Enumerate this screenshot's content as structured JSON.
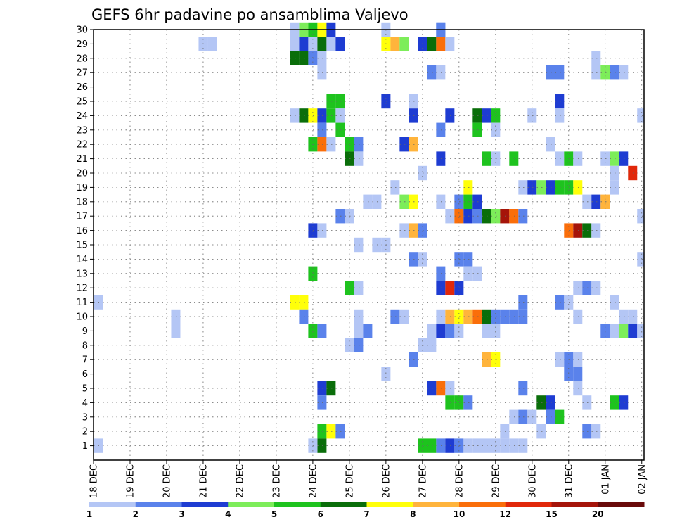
{
  "chart_data": {
    "type": "heatmap",
    "title": "GEFS 6hr padavine po ansamblima Valjevo",
    "xlabel": "",
    "ylabel": "",
    "x_tick_labels": [
      "18 DEC",
      "19 DEC",
      "20 DEC",
      "21 DEC",
      "22 DEC",
      "23 DEC",
      "24 DEC",
      "25 DEC",
      "26 DEC",
      "27 DEC",
      "28 DEC",
      "29 DEC",
      "30 DEC",
      "31 DEC",
      "01 JAN",
      "02 JAN"
    ],
    "x_range_steps": [
      0,
      60
    ],
    "steps_per_day": 4,
    "y_range": [
      0,
      30
    ],
    "y_ticks": [
      1,
      2,
      3,
      4,
      5,
      6,
      7,
      8,
      9,
      10,
      11,
      12,
      13,
      14,
      15,
      16,
      17,
      18,
      19,
      20,
      21,
      22,
      23,
      24,
      25,
      26,
      27,
      28,
      29,
      30
    ],
    "grid": true,
    "legend_placement": "bottom",
    "colorbar": {
      "labels": [
        "1",
        "2",
        "3",
        "4",
        "5",
        "6",
        "7",
        "8",
        "10",
        "12",
        "15",
        "20"
      ],
      "colors": [
        "#b4c6f5",
        "#5a82eb",
        "#1e3cd2",
        "#7ded5a",
        "#1ec31e",
        "#0a6e0a",
        "#ffff0a",
        "#ffb43c",
        "#fa6e0a",
        "#e1280a",
        "#a5140a",
        "#690a0a"
      ]
    },
    "cells": [
      [
        0,
        1,
        1
      ],
      [
        0,
        11,
        1
      ],
      [
        9,
        9,
        1
      ],
      [
        12,
        29,
        1
      ],
      [
        13,
        29,
        1
      ],
      [
        22,
        30,
        1
      ],
      [
        23,
        30,
        4
      ],
      [
        24,
        30,
        5
      ],
      [
        25,
        30,
        7
      ],
      [
        26,
        30,
        3
      ],
      [
        32,
        30,
        1
      ],
      [
        32,
        29,
        7
      ],
      [
        33,
        29,
        8
      ],
      [
        34,
        29,
        4
      ],
      [
        36,
        29,
        3
      ],
      [
        37,
        29,
        6
      ],
      [
        38,
        29,
        9
      ],
      [
        39,
        29,
        1
      ],
      [
        38,
        30,
        2
      ],
      [
        38,
        30,
        2
      ],
      [
        22,
        29,
        1
      ],
      [
        23,
        29,
        3
      ],
      [
        24,
        29,
        1
      ],
      [
        25,
        29,
        6
      ],
      [
        26,
        29,
        1
      ],
      [
        27,
        29,
        3
      ],
      [
        22,
        28,
        6
      ],
      [
        23,
        28,
        6
      ],
      [
        24,
        28,
        2
      ],
      [
        25,
        28,
        1
      ],
      [
        25,
        27,
        1
      ],
      [
        37,
        27,
        2
      ],
      [
        38,
        27,
        1
      ],
      [
        50,
        27,
        2
      ],
      [
        51,
        27,
        2
      ],
      [
        55,
        27,
        1
      ],
      [
        56,
        27,
        4
      ],
      [
        57,
        27,
        2
      ],
      [
        58,
        27,
        1
      ],
      [
        55,
        28,
        1
      ],
      [
        26,
        25,
        5
      ],
      [
        27,
        25,
        5
      ],
      [
        32,
        25,
        3
      ],
      [
        35,
        25,
        1
      ],
      [
        51,
        25,
        3
      ],
      [
        22,
        24,
        1
      ],
      [
        23,
        24,
        6
      ],
      [
        24,
        24,
        7
      ],
      [
        25,
        24,
        3
      ],
      [
        26,
        24,
        5
      ],
      [
        27,
        24,
        1
      ],
      [
        35,
        24,
        3
      ],
      [
        39,
        24,
        3
      ],
      [
        42,
        24,
        6
      ],
      [
        43,
        24,
        3
      ],
      [
        44,
        24,
        5
      ],
      [
        48,
        24,
        1
      ],
      [
        51,
        24,
        1
      ],
      [
        60,
        24,
        1
      ],
      [
        25,
        23,
        2
      ],
      [
        27,
        23,
        5
      ],
      [
        38,
        23,
        2
      ],
      [
        42,
        23,
        5
      ],
      [
        44,
        23,
        1
      ],
      [
        24,
        22,
        5
      ],
      [
        25,
        22,
        9
      ],
      [
        26,
        22,
        1
      ],
      [
        28,
        22,
        5
      ],
      [
        29,
        22,
        2
      ],
      [
        34,
        22,
        3
      ],
      [
        35,
        22,
        8
      ],
      [
        50,
        22,
        1
      ],
      [
        28,
        21,
        6
      ],
      [
        29,
        21,
        1
      ],
      [
        38,
        21,
        3
      ],
      [
        43,
        21,
        5
      ],
      [
        44,
        21,
        1
      ],
      [
        46,
        21,
        5
      ],
      [
        51,
        21,
        1
      ],
      [
        52,
        21,
        5
      ],
      [
        53,
        21,
        1
      ],
      [
        56,
        21,
        1
      ],
      [
        57,
        21,
        4
      ],
      [
        58,
        21,
        3
      ],
      [
        36,
        20,
        1
      ],
      [
        57,
        20,
        1
      ],
      [
        59,
        20,
        10
      ],
      [
        33,
        19,
        1
      ],
      [
        41,
        19,
        7
      ],
      [
        47,
        19,
        1
      ],
      [
        48,
        19,
        3
      ],
      [
        49,
        19,
        4
      ],
      [
        50,
        19,
        3
      ],
      [
        51,
        19,
        5
      ],
      [
        52,
        19,
        5
      ],
      [
        53,
        19,
        7
      ],
      [
        57,
        19,
        1
      ],
      [
        30,
        18,
        1
      ],
      [
        31,
        18,
        1
      ],
      [
        34,
        18,
        4
      ],
      [
        35,
        18,
        7
      ],
      [
        38,
        18,
        1
      ],
      [
        40,
        18,
        2
      ],
      [
        41,
        18,
        5
      ],
      [
        42,
        18,
        3
      ],
      [
        54,
        18,
        1
      ],
      [
        55,
        18,
        3
      ],
      [
        56,
        18,
        8
      ],
      [
        27,
        17,
        2
      ],
      [
        28,
        17,
        1
      ],
      [
        39,
        17,
        1
      ],
      [
        40,
        17,
        9
      ],
      [
        41,
        17,
        3
      ],
      [
        42,
        17,
        2
      ],
      [
        43,
        17,
        6
      ],
      [
        44,
        17,
        4
      ],
      [
        45,
        17,
        11
      ],
      [
        46,
        17,
        9
      ],
      [
        47,
        17,
        2
      ],
      [
        60,
        17,
        1
      ],
      [
        24,
        16,
        3
      ],
      [
        25,
        16,
        1
      ],
      [
        34,
        16,
        1
      ],
      [
        35,
        16,
        8
      ],
      [
        36,
        16,
        2
      ],
      [
        52,
        16,
        9
      ],
      [
        53,
        16,
        11
      ],
      [
        54,
        16,
        6
      ],
      [
        55,
        16,
        1
      ],
      [
        29,
        15,
        1
      ],
      [
        31,
        15,
        1
      ],
      [
        32,
        15,
        1
      ],
      [
        35,
        14,
        2
      ],
      [
        36,
        14,
        1
      ],
      [
        40,
        14,
        2
      ],
      [
        41,
        14,
        2
      ],
      [
        60,
        14,
        1
      ],
      [
        41,
        13,
        1
      ],
      [
        42,
        13,
        1
      ],
      [
        24,
        13,
        5
      ],
      [
        38,
        13,
        2
      ],
      [
        38,
        12,
        3
      ],
      [
        39,
        12,
        10
      ],
      [
        40,
        12,
        3
      ],
      [
        28,
        12,
        5
      ],
      [
        29,
        12,
        1
      ],
      [
        53,
        12,
        1
      ],
      [
        54,
        12,
        2
      ],
      [
        55,
        12,
        1
      ],
      [
        22,
        11,
        7
      ],
      [
        23,
        11,
        7
      ],
      [
        47,
        11,
        2
      ],
      [
        51,
        11,
        2
      ],
      [
        52,
        11,
        1
      ],
      [
        57,
        11,
        1
      ],
      [
        9,
        10,
        1
      ],
      [
        23,
        10,
        2
      ],
      [
        29,
        10,
        1
      ],
      [
        33,
        10,
        2
      ],
      [
        34,
        10,
        1
      ],
      [
        38,
        10,
        1
      ],
      [
        39,
        10,
        8
      ],
      [
        40,
        10,
        7
      ],
      [
        41,
        10,
        8
      ],
      [
        42,
        10,
        9
      ],
      [
        43,
        10,
        6
      ],
      [
        44,
        10,
        2
      ],
      [
        45,
        10,
        2
      ],
      [
        46,
        10,
        2
      ],
      [
        47,
        10,
        2
      ],
      [
        53,
        10,
        1
      ],
      [
        58,
        10,
        1
      ],
      [
        59,
        10,
        1
      ],
      [
        24,
        9,
        5
      ],
      [
        25,
        9,
        2
      ],
      [
        29,
        9,
        1
      ],
      [
        30,
        9,
        2
      ],
      [
        37,
        9,
        1
      ],
      [
        38,
        9,
        3
      ],
      [
        39,
        9,
        2
      ],
      [
        40,
        9,
        1
      ],
      [
        43,
        9,
        1
      ],
      [
        44,
        9,
        1
      ],
      [
        56,
        9,
        2
      ],
      [
        57,
        9,
        1
      ],
      [
        58,
        9,
        4
      ],
      [
        59,
        9,
        3
      ],
      [
        60,
        9,
        1
      ],
      [
        28,
        8,
        1
      ],
      [
        29,
        8,
        2
      ],
      [
        36,
        8,
        1
      ],
      [
        37,
        8,
        1
      ],
      [
        35,
        7,
        2
      ],
      [
        43,
        7,
        8
      ],
      [
        44,
        7,
        7
      ],
      [
        51,
        7,
        1
      ],
      [
        52,
        7,
        2
      ],
      [
        53,
        7,
        1
      ],
      [
        32,
        6,
        1
      ],
      [
        52,
        6,
        2
      ],
      [
        53,
        6,
        2
      ],
      [
        25,
        5,
        3
      ],
      [
        26,
        5,
        6
      ],
      [
        37,
        5,
        3
      ],
      [
        38,
        5,
        9
      ],
      [
        39,
        5,
        1
      ],
      [
        47,
        5,
        2
      ],
      [
        53,
        5,
        1
      ],
      [
        25,
        4,
        2
      ],
      [
        39,
        4,
        5
      ],
      [
        40,
        4,
        5
      ],
      [
        41,
        4,
        2
      ],
      [
        49,
        4,
        6
      ],
      [
        50,
        4,
        3
      ],
      [
        54,
        4,
        1
      ],
      [
        57,
        4,
        5
      ],
      [
        58,
        4,
        3
      ],
      [
        46,
        3,
        1
      ],
      [
        47,
        3,
        2
      ],
      [
        48,
        3,
        1
      ],
      [
        50,
        3,
        2
      ],
      [
        51,
        3,
        5
      ],
      [
        25,
        2,
        5
      ],
      [
        26,
        2,
        7
      ],
      [
        27,
        2,
        2
      ],
      [
        45,
        2,
        1
      ],
      [
        49,
        2,
        1
      ],
      [
        54,
        2,
        2
      ],
      [
        55,
        2,
        1
      ],
      [
        25,
        1,
        6
      ],
      [
        24,
        1,
        1
      ],
      [
        36,
        1,
        5
      ],
      [
        37,
        1,
        5
      ],
      [
        38,
        1,
        2
      ],
      [
        39,
        1,
        3
      ],
      [
        40,
        1,
        2
      ],
      [
        41,
        1,
        1
      ],
      [
        42,
        1,
        1
      ],
      [
        43,
        1,
        1
      ],
      [
        44,
        1,
        1
      ],
      [
        45,
        1,
        1
      ],
      [
        46,
        1,
        1
      ],
      [
        47,
        1,
        1
      ]
    ]
  }
}
